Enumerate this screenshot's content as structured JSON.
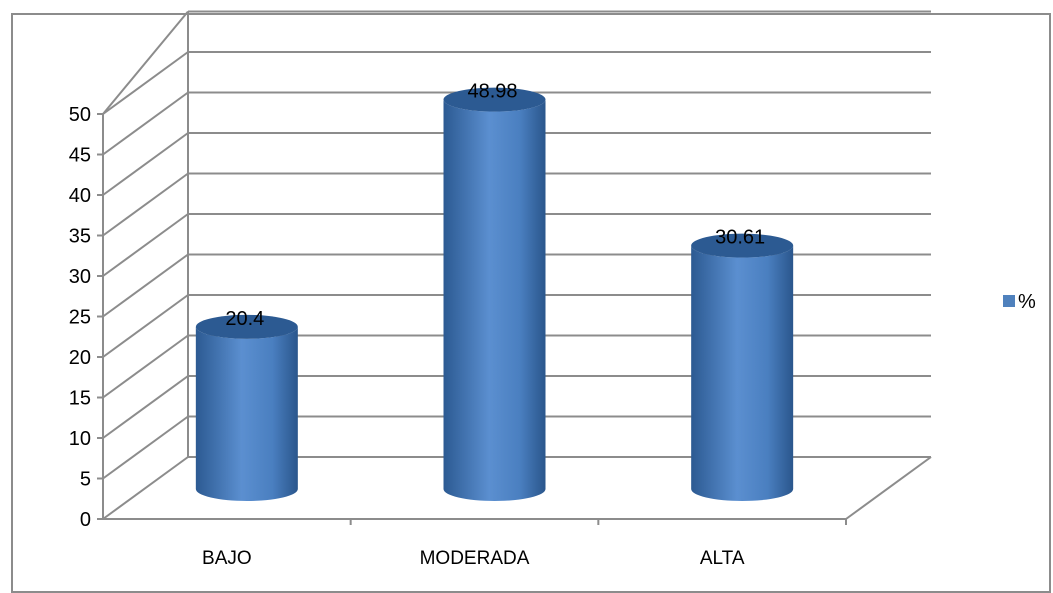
{
  "chart_data": {
    "type": "bar",
    "title": "",
    "xlabel": "",
    "ylabel": "",
    "categories": [
      "BAJO",
      "MODERADA",
      "ALTA"
    ],
    "series": [
      {
        "name": "%",
        "values": [
          20.4,
          48.98,
          30.61
        ],
        "data_labels": [
          "20.4",
          "48.98",
          "30.61"
        ]
      }
    ],
    "ylim": [
      0,
      50
    ],
    "ytick_step": 5,
    "grid": true,
    "legend_position": "right",
    "style": "3d-cylinder",
    "colors": {
      "bar": "#4f81bd",
      "bar_dark": "#2c5a92",
      "bar_light": "#6d98cf",
      "grid": "#8c8c8c"
    }
  }
}
